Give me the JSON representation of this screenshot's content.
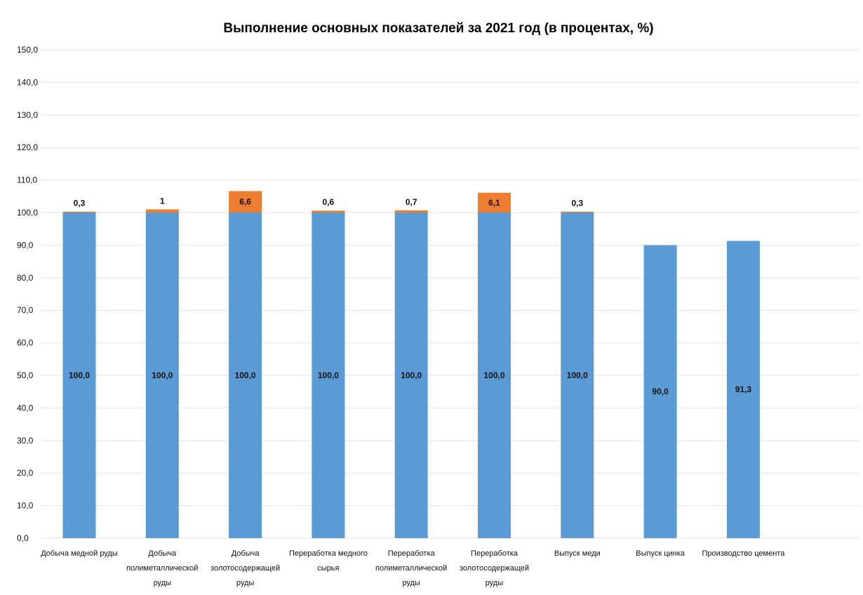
{
  "chart_data": {
    "type": "bar",
    "stacked": true,
    "title": "Выполнение основных показателей за 2021 год (в процентах, %)",
    "xlabel": "",
    "ylabel": "",
    "ylim": [
      0,
      150
    ],
    "y_ticks": [
      "0,0",
      "10,0",
      "20,0",
      "30,0",
      "40,0",
      "50,0",
      "60,0",
      "70,0",
      "80,0",
      "90,0",
      "100,0",
      "110,0",
      "120,0",
      "130,0",
      "140,0",
      "150,0"
    ],
    "grid": true,
    "legend": "none",
    "categories": [
      [
        "Добыча медной руды"
      ],
      [
        "Добыча",
        "полиметаллической",
        "руды"
      ],
      [
        "Добыча",
        "золотосодержащей",
        "руды"
      ],
      [
        "Переработка медного",
        "сырья"
      ],
      [
        "Переработка",
        "полиметаллической",
        "руды"
      ],
      [
        "Переработка",
        "золотосодержащей",
        "руды"
      ],
      [
        "Выпуск меди"
      ],
      [
        "Выпуск цинка"
      ],
      [
        "Производство цемента"
      ]
    ],
    "series": [
      {
        "color": "#5b9bd5",
        "values": [
          100.0,
          100.0,
          100.0,
          100.0,
          100.0,
          100.0,
          100.0,
          90.0,
          91.3
        ],
        "labels": [
          "100,0",
          "100,0",
          "100,0",
          "100,0",
          "100,0",
          "100,0",
          "100,0",
          "90,0",
          "91,3"
        ]
      },
      {
        "color": "#ed7d31",
        "values": [
          0.3,
          1,
          6.6,
          0.6,
          0.7,
          6.1,
          0.3,
          null,
          null
        ],
        "labels": [
          "0,3",
          "1",
          "6,6",
          "0,6",
          "0,7",
          "6,1",
          "0,3",
          null,
          null
        ]
      }
    ]
  }
}
